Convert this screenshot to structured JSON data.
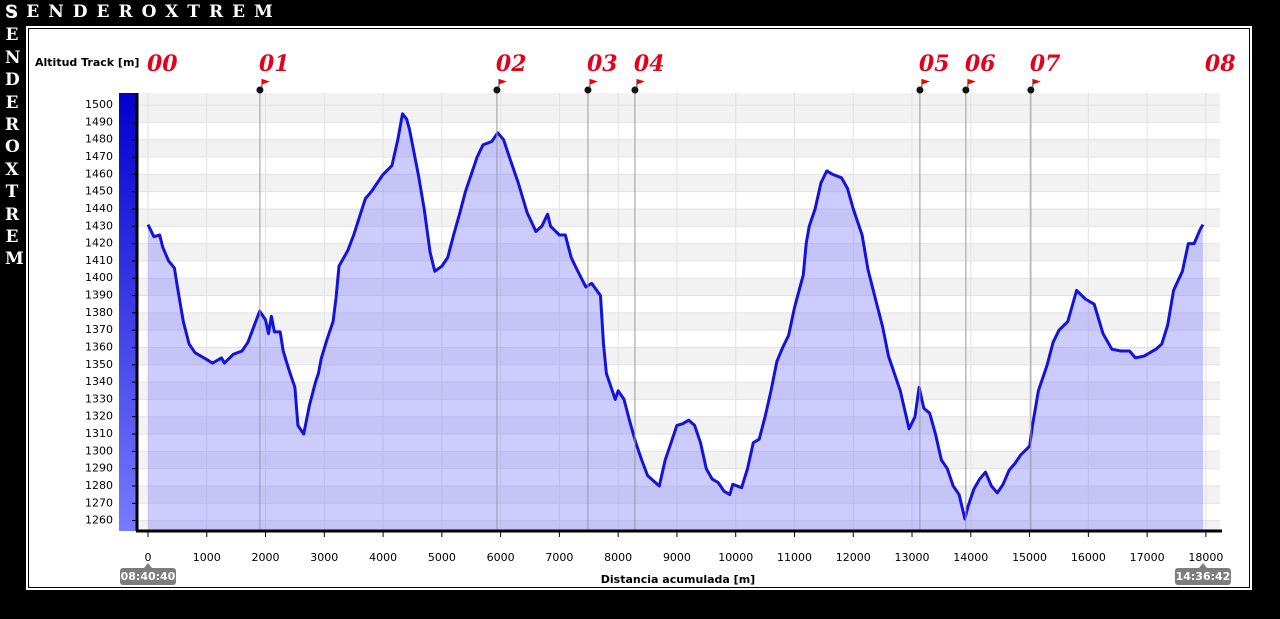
{
  "brand": "SENDEROXTREM",
  "chart_data": {
    "type": "area",
    "ylabel": "Altitud Track [m]",
    "xlabel": "Distancia acumulada [m]",
    "start_time": "08:40:40",
    "end_time": "14:36:42",
    "color": "#1414d8",
    "fill": "rgba(120,120,255,0.38)",
    "grid": true,
    "xlim": [
      -170,
      18240
    ],
    "ylim": [
      1254,
      1507
    ],
    "xticks": [
      0,
      1000,
      2000,
      3000,
      4000,
      5000,
      6000,
      7000,
      8000,
      9000,
      10000,
      11000,
      12000,
      13000,
      14000,
      15000,
      16000,
      17000,
      18000
    ],
    "yticks": [
      1260,
      1270,
      1280,
      1290,
      1300,
      1310,
      1320,
      1330,
      1340,
      1350,
      1360,
      1370,
      1380,
      1390,
      1400,
      1410,
      1420,
      1430,
      1440,
      1450,
      1460,
      1470,
      1480,
      1490,
      1500
    ],
    "markers": [
      {
        "label": "00",
        "x": 0,
        "flag": false
      },
      {
        "label": "01",
        "x": 1905,
        "flag": true
      },
      {
        "label": "02",
        "x": 5937,
        "flag": true
      },
      {
        "label": "03",
        "x": 7486,
        "flag": true
      },
      {
        "label": "04",
        "x": 8285,
        "flag": true
      },
      {
        "label": "05",
        "x": 13134,
        "flag": true
      },
      {
        "label": "06",
        "x": 13916,
        "flag": true
      },
      {
        "label": "07",
        "x": 15022,
        "flag": true
      },
      {
        "label": "08",
        "x": 18000,
        "flag": false
      }
    ],
    "x": [
      0,
      100,
      200,
      250,
      350,
      450,
      500,
      600,
      700,
      800,
      1000,
      1100,
      1250,
      1300,
      1450,
      1600,
      1700,
      1800,
      1900,
      2000,
      2050,
      2100,
      2150,
      2250,
      2300,
      2400,
      2500,
      2550,
      2650,
      2750,
      2850,
      2900,
      2950,
      3050,
      3150,
      3200,
      3250,
      3400,
      3500,
      3700,
      3800,
      4000,
      4150,
      4250,
      4330,
      4400,
      4450,
      4600,
      4700,
      4800,
      4880,
      5000,
      5100,
      5200,
      5300,
      5400,
      5600,
      5700,
      5850,
      5950,
      6050,
      6150,
      6300,
      6450,
      6600,
      6700,
      6800,
      6850,
      7000,
      7100,
      7200,
      7300,
      7450,
      7550,
      7700,
      7750,
      7800,
      7900,
      7950,
      8000,
      8100,
      8200,
      8300,
      8400,
      8500,
      8600,
      8700,
      8800,
      8900,
      9000,
      9100,
      9200,
      9300,
      9400,
      9500,
      9600,
      9700,
      9800,
      9900,
      9950,
      10100,
      10200,
      10300,
      10400,
      10500,
      10600,
      10700,
      10800,
      10900,
      11000,
      11150,
      11200,
      11250,
      11350,
      11450,
      11550,
      11650,
      11800,
      11900,
      12000,
      12150,
      12250,
      12400,
      12500,
      12600,
      12700,
      12800,
      12950,
      13050,
      13120,
      13200,
      13300,
      13400,
      13500,
      13600,
      13700,
      13800,
      13900,
      13950,
      14050,
      14150,
      14250,
      14350,
      14450,
      14550,
      14650,
      14750,
      14850,
      15000,
      15050,
      15150,
      15300,
      15400,
      15500,
      15650,
      15800,
      15950,
      16100,
      16250,
      16400,
      16550,
      16700,
      16800,
      16950,
      17150,
      17250,
      17350,
      17450,
      17600,
      17700,
      17800,
      17900,
      17950
    ],
    "values": [
      1431,
      1424,
      1425,
      1418,
      1410,
      1406,
      1395,
      1375,
      1362,
      1357,
      1353,
      1351,
      1354,
      1351,
      1356,
      1358,
      1363,
      1372,
      1381,
      1376,
      1368,
      1378,
      1369,
      1369,
      1358,
      1347,
      1337,
      1315,
      1310,
      1327,
      1340,
      1345,
      1354,
      1365,
      1375,
      1389,
      1407,
      1416,
      1425,
      1446,
      1450,
      1460,
      1465,
      1480,
      1495,
      1492,
      1486,
      1460,
      1440,
      1415,
      1404,
      1407,
      1412,
      1425,
      1437,
      1450,
      1470,
      1477,
      1479,
      1484,
      1480,
      1470,
      1455,
      1438,
      1427,
      1430,
      1437,
      1430,
      1425,
      1425,
      1412,
      1405,
      1395,
      1397,
      1390,
      1362,
      1345,
      1335,
      1330,
      1335,
      1330,
      1317,
      1305,
      1295,
      1286,
      1283,
      1280,
      1295,
      1305,
      1315,
      1316,
      1318,
      1315,
      1305,
      1290,
      1284,
      1282,
      1277,
      1275,
      1281,
      1279,
      1290,
      1305,
      1307,
      1320,
      1335,
      1352,
      1360,
      1367,
      1383,
      1402,
      1420,
      1430,
      1440,
      1455,
      1462,
      1460,
      1458,
      1452,
      1440,
      1425,
      1405,
      1385,
      1372,
      1355,
      1345,
      1335,
      1313,
      1320,
      1337,
      1325,
      1322,
      1310,
      1295,
      1290,
      1280,
      1275,
      1261,
      1268,
      1278,
      1284,
      1288,
      1280,
      1276,
      1281,
      1289,
      1293,
      1298,
      1303,
      1315,
      1335,
      1350,
      1363,
      1370,
      1375,
      1393,
      1388,
      1385,
      1368,
      1359,
      1358,
      1358,
      1354,
      1355,
      1359,
      1362,
      1373,
      1393,
      1404,
      1420,
      1420,
      1428,
      1431
    ]
  }
}
